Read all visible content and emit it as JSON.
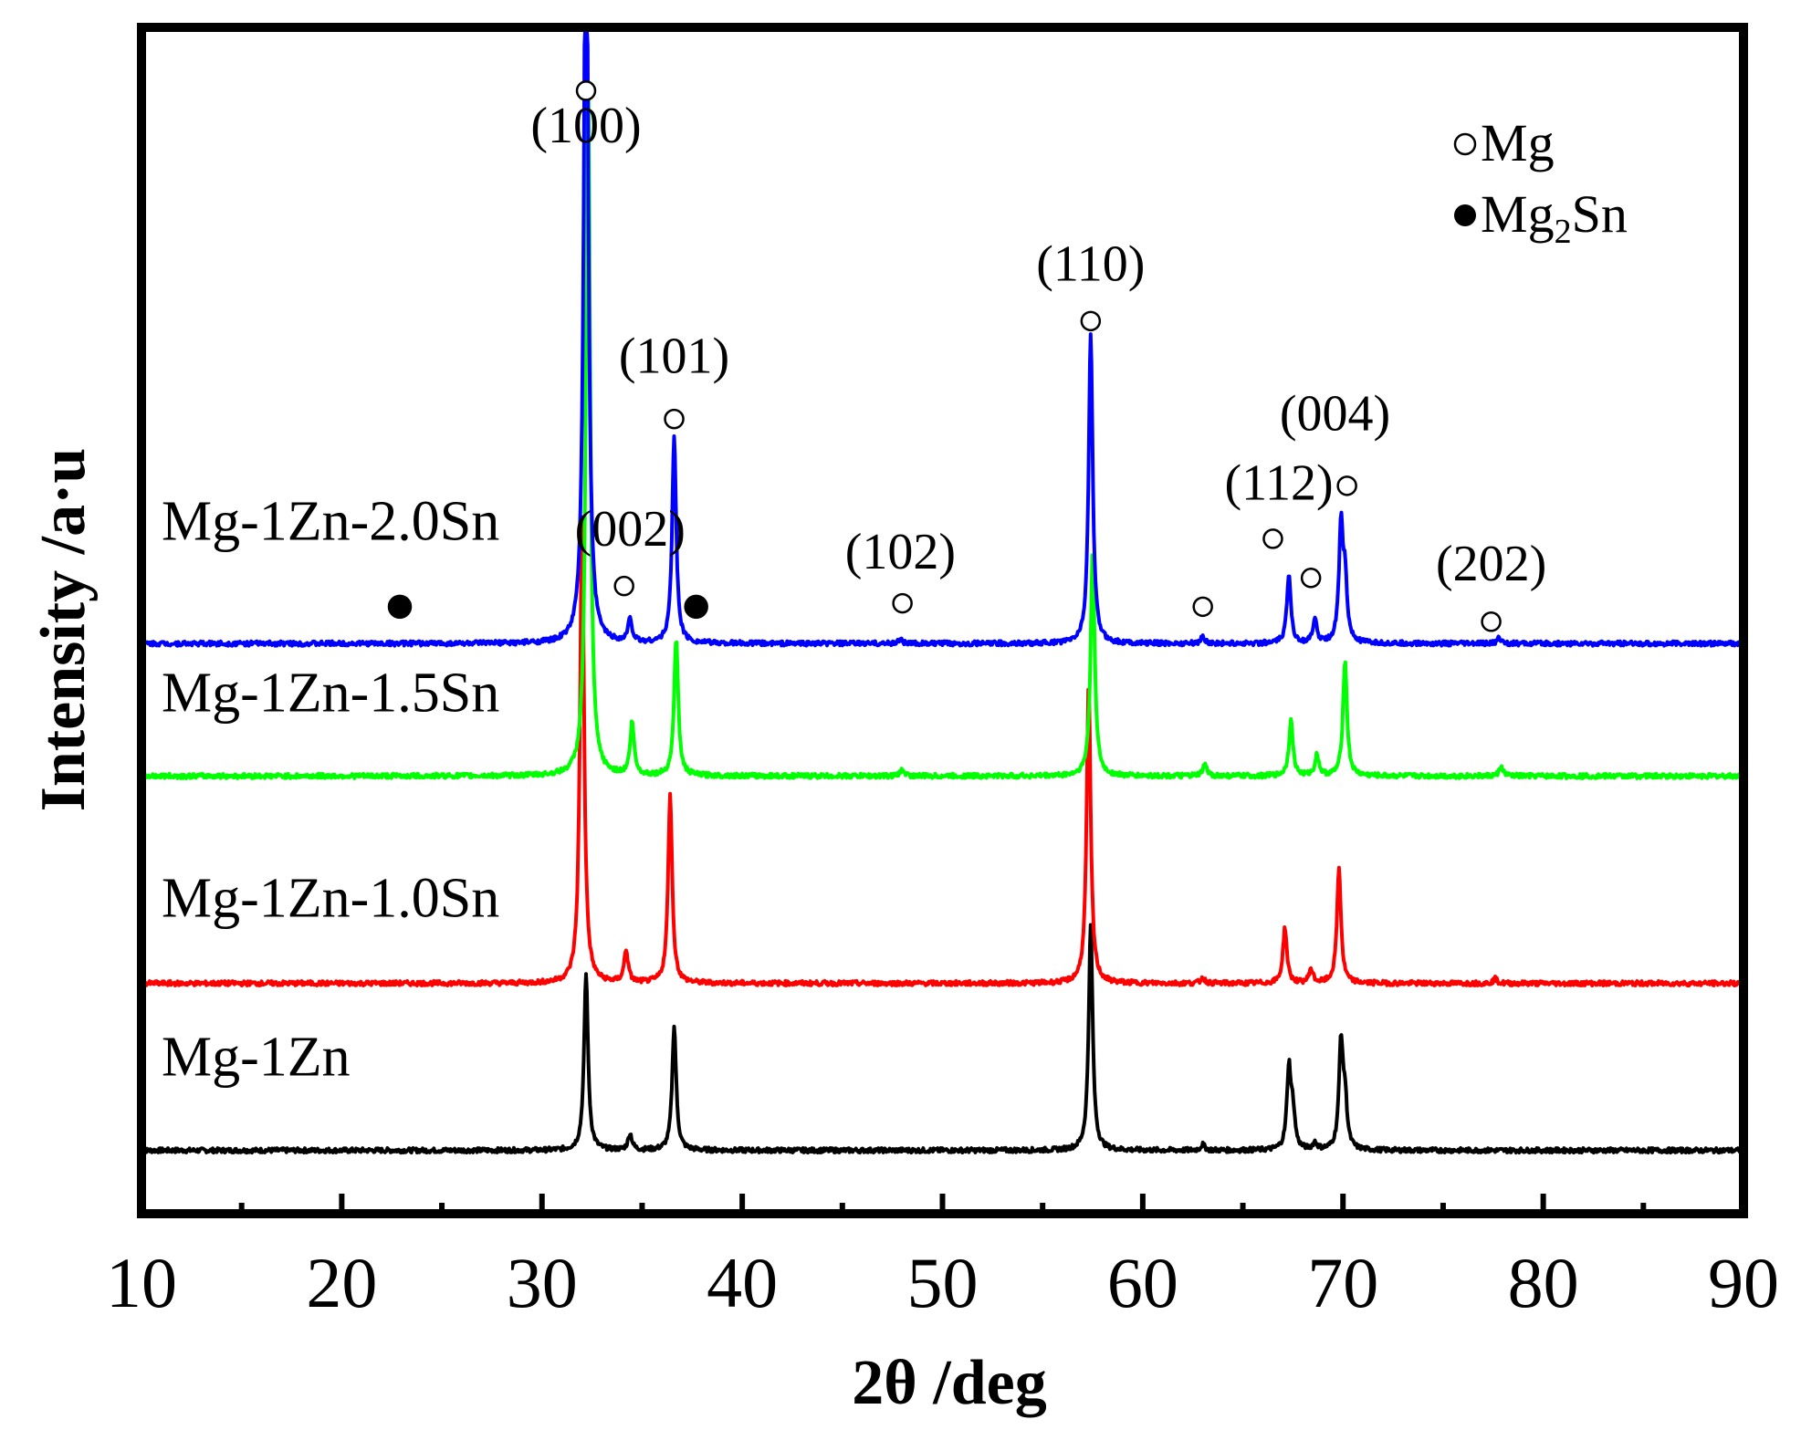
{
  "chart_data": {
    "type": "line",
    "title": "",
    "xlabel": "2θ /deg",
    "ylabel": "Intensity /a·u",
    "xlim": [
      10,
      90
    ],
    "x_major_ticks": [
      10,
      20,
      30,
      40,
      50,
      60,
      70,
      80,
      90
    ],
    "x_tick_labels": [
      "10",
      "20",
      "30",
      "40",
      "50",
      "60",
      "70",
      "80",
      "90"
    ],
    "x_minor_ticks": [
      15,
      25,
      35,
      45,
      55,
      65,
      75,
      85
    ],
    "ylim": [
      0,
      1.03
    ],
    "y_ticks_shown": false,
    "grid": false,
    "series": [
      {
        "name": "Mg-1Zn",
        "color": "#000000",
        "baseline": 0.055,
        "peaks": [
          [
            32.2,
            0.153
          ],
          [
            34.4,
            0.014
          ],
          [
            36.6,
            0.108
          ],
          [
            57.4,
            0.195
          ],
          [
            63.0,
            0.005
          ],
          [
            67.3,
            0.07
          ],
          [
            67.5,
            0.03
          ],
          [
            68.6,
            0.006
          ],
          [
            69.9,
            0.092
          ],
          [
            70.1,
            0.04
          ]
        ]
      },
      {
        "name": "Mg-1Zn-1.0Sn",
        "color": "#ff0000",
        "baseline": 0.2,
        "peaks": [
          [
            32.0,
            0.405
          ],
          [
            34.2,
            0.028
          ],
          [
            36.4,
            0.165
          ],
          [
            57.3,
            0.26
          ],
          [
            63.0,
            0.005
          ],
          [
            67.1,
            0.048
          ],
          [
            68.4,
            0.012
          ],
          [
            69.8,
            0.1
          ],
          [
            77.6,
            0.004
          ]
        ]
      },
      {
        "name": "Mg-1Zn-1.5Sn",
        "color": "#00ff00",
        "baseline": 0.38,
        "peaks": [
          [
            32.3,
            0.62
          ],
          [
            34.5,
            0.045
          ],
          [
            36.7,
            0.12
          ],
          [
            48.0,
            0.006
          ],
          [
            57.5,
            0.195
          ],
          [
            63.1,
            0.01
          ],
          [
            67.4,
            0.048
          ],
          [
            68.7,
            0.018
          ],
          [
            70.1,
            0.1
          ],
          [
            77.9,
            0.008
          ]
        ]
      },
      {
        "name": "Mg-1Zn-2.0Sn",
        "color": "#0000ff",
        "baseline": 0.495,
        "peaks": [
          [
            32.2,
            0.75
          ],
          [
            34.4,
            0.02
          ],
          [
            36.6,
            0.18
          ],
          [
            47.9,
            0.004
          ],
          [
            57.4,
            0.27
          ],
          [
            63.0,
            0.006
          ],
          [
            67.3,
            0.06
          ],
          [
            68.6,
            0.02
          ],
          [
            69.9,
            0.1
          ],
          [
            70.1,
            0.05
          ],
          [
            77.8,
            0.005
          ]
        ]
      }
    ],
    "legend": {
      "placement": "top-right",
      "entries": [
        {
          "marker": "open-circle",
          "label": "Mg"
        },
        {
          "marker": "filled-circle",
          "label": "Mg",
          "subscript": "2",
          "suffix": "Sn"
        }
      ]
    },
    "annotations": [
      {
        "text": "(100)",
        "x": 32.2,
        "y": 0.93
      },
      {
        "text": "(101)",
        "x": 36.6,
        "y": 0.73
      },
      {
        "text": "(002)",
        "x": 34.4,
        "y": 0.58
      },
      {
        "text": "(102)",
        "x": 47.9,
        "y": 0.56
      },
      {
        "text": "(110)",
        "x": 57.4,
        "y": 0.81
      },
      {
        "text": "(112)",
        "x": 66.8,
        "y": 0.62
      },
      {
        "text": "(004)",
        "x": 69.6,
        "y": 0.68
      },
      {
        "text": "(202)",
        "x": 77.4,
        "y": 0.55
      }
    ],
    "markers": [
      {
        "type": "open-circle",
        "x": 32.2,
        "y": 0.975
      },
      {
        "type": "open-circle",
        "x": 36.6,
        "y": 0.69
      },
      {
        "type": "open-circle",
        "x": 57.4,
        "y": 0.775
      },
      {
        "type": "open-circle",
        "x": 34.1,
        "y": 0.545
      },
      {
        "type": "open-circle",
        "x": 48.0,
        "y": 0.53
      },
      {
        "type": "open-circle",
        "x": 63.0,
        "y": 0.527
      },
      {
        "type": "open-circle",
        "x": 66.5,
        "y": 0.586
      },
      {
        "type": "open-circle",
        "x": 68.4,
        "y": 0.552
      },
      {
        "type": "open-circle",
        "x": 70.2,
        "y": 0.632
      },
      {
        "type": "open-circle",
        "x": 77.4,
        "y": 0.514
      },
      {
        "type": "filled-circle",
        "x": 22.9,
        "y": 0.527
      },
      {
        "type": "filled-circle",
        "x": 37.7,
        "y": 0.527
      }
    ],
    "series_labels": [
      {
        "text": "Mg-1Zn-2.0Sn",
        "x": 11.0,
        "y": 0.585
      },
      {
        "text": "Mg-1Zn-1.5Sn",
        "x": 11.0,
        "y": 0.436
      },
      {
        "text": "Mg-1Zn-1.0Sn",
        "x": 11.0,
        "y": 0.258
      },
      {
        "text": "Mg-1Zn",
        "x": 11.0,
        "y": 0.12
      }
    ]
  }
}
